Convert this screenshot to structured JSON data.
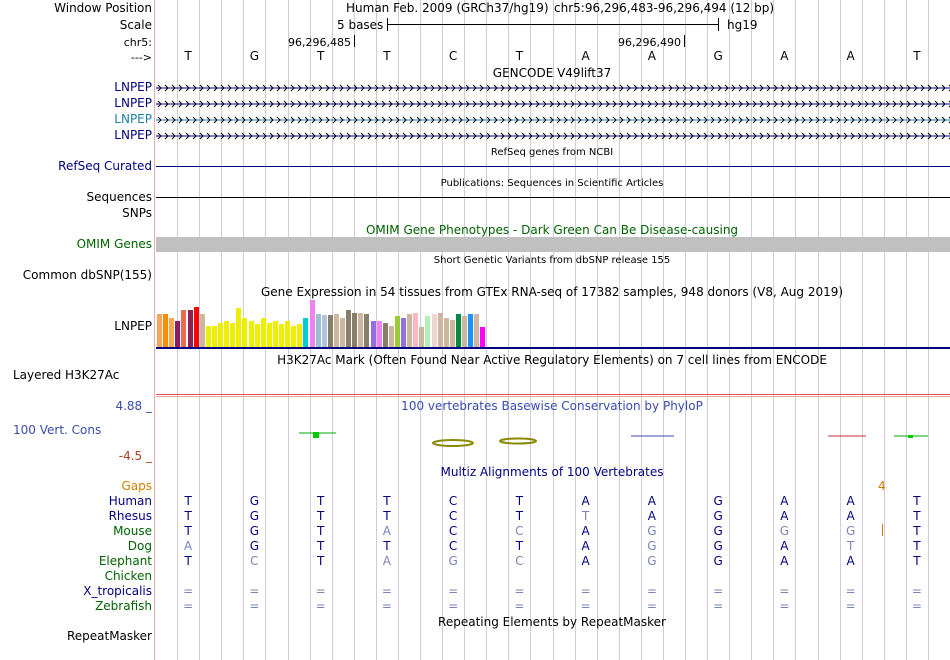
{
  "labels": {
    "window_position": "Window Position",
    "scale": "Scale",
    "chr": "chr5:",
    "strand": "--->",
    "lnpep_1": "LNPEP",
    "lnpep_2": "LNPEP",
    "lnpep_3": "LNPEP",
    "lnpep_4": "LNPEP",
    "refseq": "RefSeq Curated",
    "sequences": "Sequences",
    "snps": "SNPs",
    "omim": "OMIM Genes",
    "common_dbsnp": "Common dbSNP(155)",
    "gtex_gene": "LNPEP",
    "h3k27ac": "Layered H3K27Ac",
    "cons": "100 Vert. Cons",
    "cons_max": "4.88 _",
    "cons_min": "-4.5 _",
    "gaps": "Gaps",
    "species": [
      {
        "name": "Human",
        "color": "#000080"
      },
      {
        "name": "Rhesus",
        "color": "#000080"
      },
      {
        "name": "Mouse",
        "color": "#006400"
      },
      {
        "name": "Dog",
        "color": "#006400"
      },
      {
        "name": "Elephant",
        "color": "#006400"
      },
      {
        "name": "Chicken",
        "color": "#006400"
      },
      {
        "name": "X_tropicalis",
        "color": "#000080"
      },
      {
        "name": "Zebrafish",
        "color": "#006400"
      }
    ],
    "repeatmasker": "RepeatMasker"
  },
  "header": {
    "assembly": "Human Feb. 2009 (GRCh37/hg19)",
    "position": "chr5:96,296,483-96,296,494 (12 bp)",
    "scale_text": "5 bases",
    "scale_db": "hg19",
    "coord1": "96,296,485",
    "coord2": "96,296,490",
    "bases": [
      "T",
      "G",
      "T",
      "T",
      "C",
      "T",
      "A",
      "A",
      "G",
      "A",
      "A",
      "T"
    ]
  },
  "tracks": {
    "gencode": "GENCODE V49lift37",
    "refseq_title": "RefSeq genes from NCBI",
    "publications": "Publications: Sequences in Scientific Articles",
    "omim_title": "OMIM Gene Phenotypes - Dark Green Can Be Disease-causing",
    "dbsnp_title": "Short Genetic Variants from dbSNP release 155",
    "gtex_title": "Gene Expression in 54 tissues from GTEx RNA-seq of 17382 samples, 948 donors (V8, Aug 2019)",
    "h3k27ac_title": "H3K27Ac Mark (Often Found Near Active Regulatory Elements) on 7 cell lines from ENCODE",
    "phylop_title": "100 vertebrates Basewise Conservation by PhyloP",
    "multiz_title": "Multiz Alignments of 100 Vertebrates",
    "gap_count": "4",
    "repeat_title": "Repeating Elements by RepeatMasker"
  },
  "colors": {
    "navy": "#000080",
    "omim_bar": "#c0c0c0",
    "gencode_teal": "#1e7fa8",
    "h3k27ac_red": "#e05050",
    "gaps_orange": "#d08000"
  },
  "alignment": {
    "rows": [
      {
        "species": "Human",
        "bases": [
          "T",
          "G",
          "T",
          "T",
          "C",
          "T",
          "A",
          "A",
          "G",
          "A",
          "A",
          "T"
        ],
        "faded": []
      },
      {
        "species": "Rhesus",
        "bases": [
          "T",
          "G",
          "T",
          "T",
          "C",
          "T",
          "T",
          "A",
          "G",
          "A",
          "A",
          "T"
        ],
        "faded": [
          6
        ]
      },
      {
        "species": "Mouse",
        "bases": [
          "T",
          "G",
          "T",
          "A",
          "C",
          "C",
          "A",
          "G",
          "G",
          "G",
          "G",
          "T"
        ],
        "faded": [
          3,
          5,
          7,
          9,
          10
        ]
      },
      {
        "species": "Dog",
        "bases": [
          "A",
          "G",
          "T",
          "T",
          "C",
          "T",
          "A",
          "G",
          "G",
          "A",
          "T",
          "T"
        ],
        "faded": [
          0,
          7,
          10
        ]
      },
      {
        "species": "Elephant",
        "bases": [
          "T",
          "C",
          "T",
          "A",
          "G",
          "C",
          "A",
          "G",
          "G",
          "A",
          "A",
          "T"
        ],
        "faded": [
          1,
          3,
          4,
          5,
          7
        ]
      },
      {
        "species": "Chicken",
        "bases": [
          "",
          "",
          "",
          "",
          "",
          "",
          "",
          "",
          "",
          "",
          "",
          ""
        ],
        "faded": []
      },
      {
        "species": "X_tropicalis",
        "bases": [
          "=",
          "=",
          "=",
          "=",
          "=",
          "=",
          "=",
          "=",
          "=",
          "=",
          "=",
          "="
        ],
        "faded": [
          0,
          1,
          2,
          3,
          4,
          5,
          6,
          7,
          8,
          9,
          10,
          11
        ]
      },
      {
        "species": "Zebrafish",
        "bases": [
          "=",
          "=",
          "=",
          "=",
          "=",
          "=",
          "=",
          "=",
          "=",
          "=",
          "=",
          "="
        ],
        "faded": [
          0,
          1,
          2,
          3,
          4,
          5,
          6,
          7,
          8,
          9,
          10,
          11
        ]
      }
    ]
  },
  "gtex_bars": [
    {
      "value": 0.7,
      "color": "#f4a460"
    },
    {
      "value": 0.7,
      "color": "#ff8c00"
    },
    {
      "value": 0.62,
      "color": "#ffa54f"
    },
    {
      "value": 0.55,
      "color": "#8b1c62"
    },
    {
      "value": 0.78,
      "color": "#ee6a50"
    },
    {
      "value": 0.78,
      "color": "#8b2252"
    },
    {
      "value": 0.85,
      "color": "#ff0000"
    },
    {
      "value": 0.7,
      "color": "#cdb79e"
    },
    {
      "value": 0.45,
      "color": "#eeee00"
    },
    {
      "value": 0.45,
      "color": "#eeee00"
    },
    {
      "value": 0.5,
      "color": "#eeee00"
    },
    {
      "value": 0.55,
      "color": "#eeee00"
    },
    {
      "value": 0.5,
      "color": "#eeee00"
    },
    {
      "value": 0.82,
      "color": "#eeee00"
    },
    {
      "value": 0.62,
      "color": "#eeee00"
    },
    {
      "value": 0.55,
      "color": "#eeee00"
    },
    {
      "value": 0.48,
      "color": "#eeee00"
    },
    {
      "value": 0.62,
      "color": "#eeee00"
    },
    {
      "value": 0.5,
      "color": "#eeee00"
    },
    {
      "value": 0.55,
      "color": "#eeee00"
    },
    {
      "value": 0.48,
      "color": "#eeee00"
    },
    {
      "value": 0.55,
      "color": "#eeee00"
    },
    {
      "value": 0.45,
      "color": "#eeee00"
    },
    {
      "value": 0.48,
      "color": "#eeee00"
    },
    {
      "value": 0.62,
      "color": "#00cdcd"
    },
    {
      "value": 1.0,
      "color": "#ee82ee"
    },
    {
      "value": 0.7,
      "color": "#9ac0cd"
    },
    {
      "value": 0.68,
      "color": "#b0c4de"
    },
    {
      "value": 0.68,
      "color": "#8b7d6b"
    },
    {
      "value": 0.7,
      "color": "#cdb79e"
    },
    {
      "value": 0.62,
      "color": "#cdb79e"
    },
    {
      "value": 0.78,
      "color": "#8b7d6b"
    },
    {
      "value": 0.72,
      "color": "#8b7d6b"
    },
    {
      "value": 0.72,
      "color": "#cdb79e"
    },
    {
      "value": 0.7,
      "color": "#8b7d6b"
    },
    {
      "value": 0.55,
      "color": "#9370db"
    },
    {
      "value": 0.55,
      "color": "#ee82ee"
    },
    {
      "value": 0.5,
      "color": "#8b7d6b"
    },
    {
      "value": 0.45,
      "color": "#cdb79e"
    },
    {
      "value": 0.65,
      "color": "#9acd32"
    },
    {
      "value": 0.62,
      "color": "#9370db"
    },
    {
      "value": 0.7,
      "color": "#cdb79e"
    },
    {
      "value": 0.72,
      "color": "#ffb6c1"
    },
    {
      "value": 0.42,
      "color": "#cdb79e"
    },
    {
      "value": 0.65,
      "color": "#b4eeb4"
    },
    {
      "value": 0.7,
      "color": "#eed5d2"
    },
    {
      "value": 0.72,
      "color": "#cdb79e"
    },
    {
      "value": 0.62,
      "color": "#cdb79e"
    },
    {
      "value": 0.58,
      "color": "#cdb79e"
    },
    {
      "value": 0.7,
      "color": "#008b45"
    },
    {
      "value": 0.65,
      "color": "#cdb79e"
    },
    {
      "value": 0.7,
      "color": "#1e90ff"
    },
    {
      "value": 0.7,
      "color": "#cdb79e"
    },
    {
      "value": 0.42,
      "color": "#ff00ff"
    }
  ]
}
